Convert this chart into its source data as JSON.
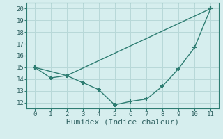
{
  "line1_x": [
    0,
    2,
    11
  ],
  "line1_y": [
    15.0,
    14.3,
    20.0
  ],
  "line2_x": [
    0,
    1,
    2,
    3,
    4,
    5,
    6,
    7,
    8,
    9,
    10,
    11
  ],
  "line2_y": [
    15.0,
    14.1,
    14.3,
    13.7,
    13.1,
    11.8,
    12.1,
    12.3,
    13.4,
    14.9,
    16.7,
    20.0
  ],
  "line_color": "#2e7d72",
  "marker": "+",
  "markersize": 4,
  "linewidth": 1.0,
  "xlabel": "Humidex (Indice chaleur)",
  "xlabel_fontsize": 8,
  "xlim": [
    -0.5,
    11.5
  ],
  "ylim": [
    11.5,
    20.5
  ],
  "yticks": [
    12,
    13,
    14,
    15,
    16,
    17,
    18,
    19,
    20
  ],
  "xticks": [
    0,
    1,
    2,
    3,
    4,
    5,
    6,
    7,
    8,
    9,
    10,
    11
  ],
  "bg_color": "#d6eeee",
  "grid_color": "#b8d8d8",
  "tick_fontsize": 6.5,
  "spine_color": "#2e7d72"
}
